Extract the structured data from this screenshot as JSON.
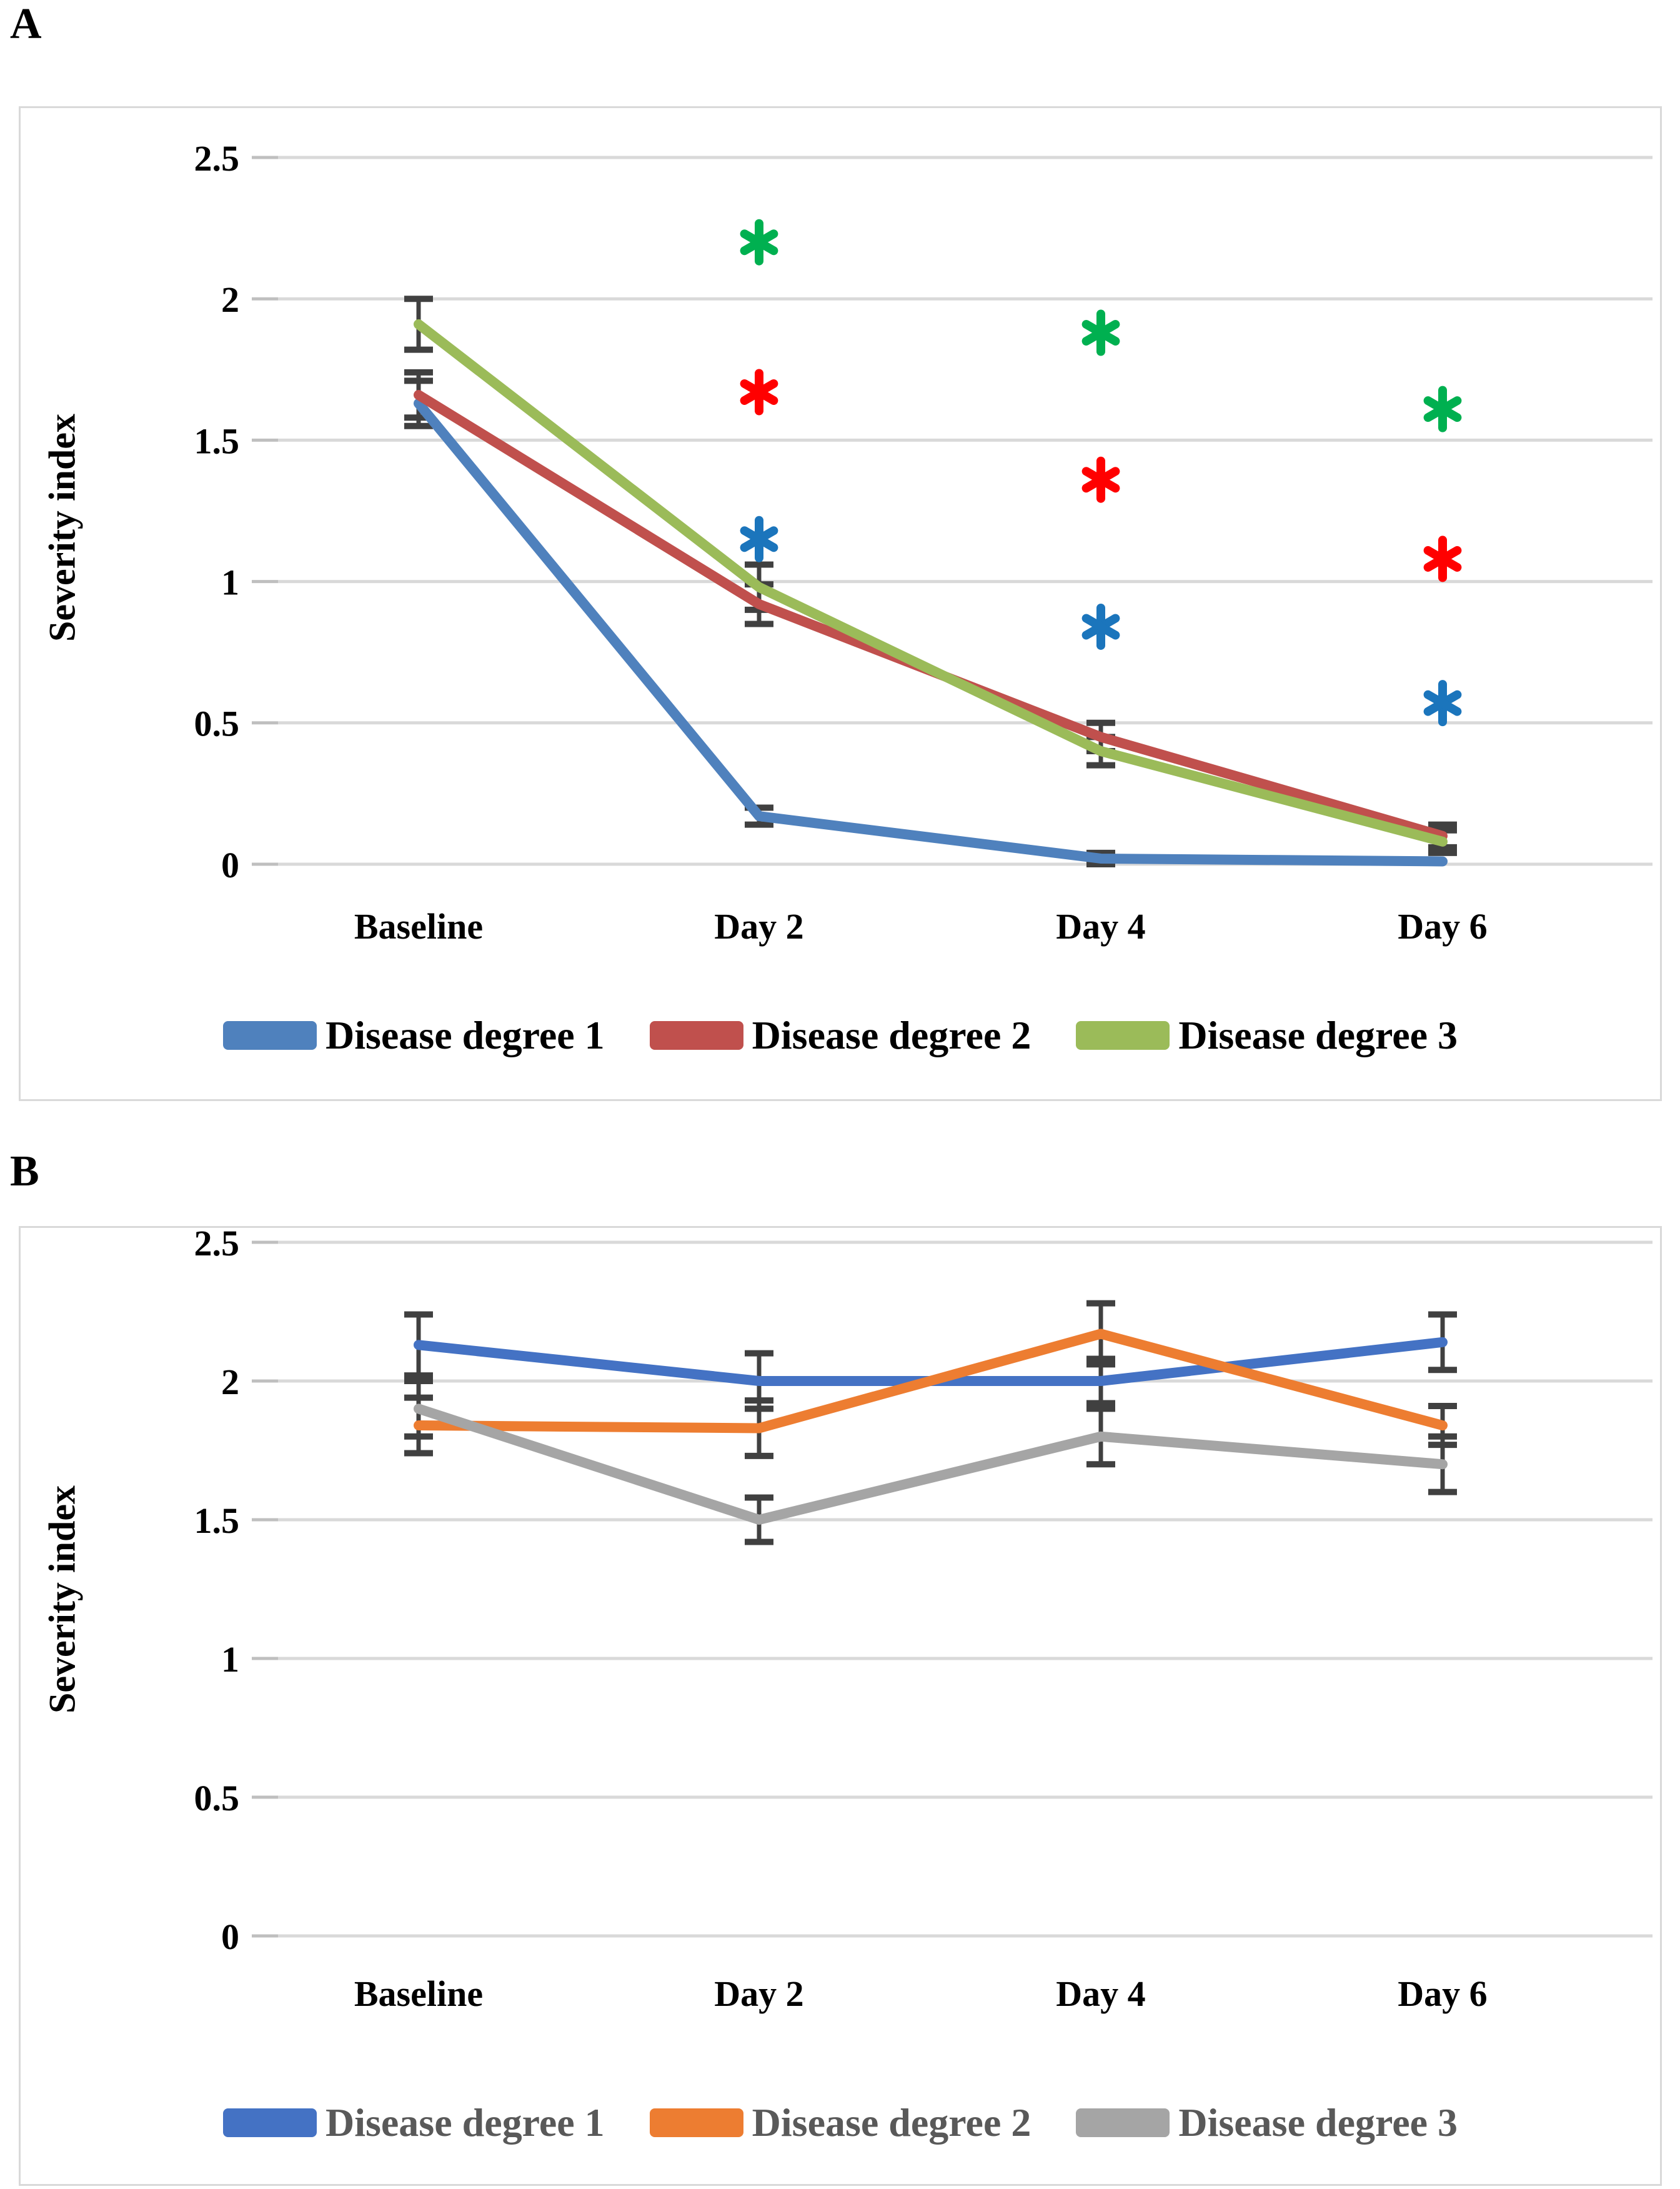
{
  "chart_data": [
    {
      "id": "panel-A",
      "panel_label": "A",
      "type": "line",
      "title": "",
      "xlabel": "",
      "ylabel": "Severity index",
      "categories": [
        "Baseline",
        "Day 2",
        "Day 4",
        "Day 6"
      ],
      "yticks": [
        2.5,
        2,
        1.5,
        1,
        0.5,
        0
      ],
      "ylim": [
        0,
        2.72
      ],
      "grid": true,
      "legend_position": "bottom",
      "axis_text_color": "#000000",
      "legend_text_color": "#000000",
      "error_bar_color": "#404040",
      "series": [
        {
          "name": "Disease degree 1",
          "color": "#4F81BD",
          "values": [
            1.63,
            0.17,
            0.02,
            0.01
          ],
          "errors": [
            0.08,
            0.03,
            0.02,
            0.01
          ]
        },
        {
          "name": "Disease degree 2",
          "color": "#C0504D",
          "values": [
            1.66,
            0.92,
            0.45,
            0.1
          ],
          "errors": [
            0.08,
            0.07,
            0.05,
            0.04
          ]
        },
        {
          "name": "Disease degree 3",
          "color": "#9BBB59",
          "values": [
            1.91,
            0.98,
            0.4,
            0.08
          ],
          "errors": [
            0.09,
            0.08,
            0.05,
            0.04
          ]
        }
      ],
      "significance_markers": [
        {
          "category": "Day 2",
          "value": 2.2,
          "color": "#00B050",
          "symbol": "asterisk"
        },
        {
          "category": "Day 2",
          "value": 1.67,
          "color": "#FF0000",
          "symbol": "asterisk"
        },
        {
          "category": "Day 2",
          "value": 1.15,
          "color": "#1B75BC",
          "symbol": "asterisk"
        },
        {
          "category": "Day 4",
          "value": 1.88,
          "color": "#00B050",
          "symbol": "asterisk"
        },
        {
          "category": "Day 4",
          "value": 1.36,
          "color": "#FF0000",
          "symbol": "asterisk"
        },
        {
          "category": "Day 4",
          "value": 0.84,
          "color": "#1B75BC",
          "symbol": "asterisk"
        },
        {
          "category": "Day 6",
          "value": 1.61,
          "color": "#00B050",
          "symbol": "asterisk"
        },
        {
          "category": "Day 6",
          "value": 1.08,
          "color": "#FF0000",
          "symbol": "asterisk"
        },
        {
          "category": "Day 6",
          "value": 0.57,
          "color": "#1B75BC",
          "symbol": "asterisk"
        }
      ]
    },
    {
      "id": "panel-B",
      "panel_label": "B",
      "type": "line",
      "title": "",
      "xlabel": "",
      "ylabel": "Severity index",
      "categories": [
        "Baseline",
        "Day 2",
        "Day 4",
        "Day 6"
      ],
      "yticks": [
        2.5,
        2,
        1.5,
        1,
        0.5,
        0
      ],
      "ylim": [
        0,
        2.72
      ],
      "grid": true,
      "legend_position": "bottom",
      "axis_text_color": "#000000",
      "legend_text_color": "#595959",
      "error_bar_color": "#404040",
      "series": [
        {
          "name": "Disease degree 1",
          "color": "#4472C4",
          "values": [
            2.13,
            2.0,
            2.0,
            2.14
          ],
          "errors": [
            0.11,
            0.1,
            0.08,
            0.1
          ]
        },
        {
          "name": "Disease degree 2",
          "color": "#ED7D31",
          "values": [
            1.84,
            1.83,
            2.17,
            1.84
          ],
          "errors": [
            0.1,
            0.1,
            0.11,
            0.07
          ]
        },
        {
          "name": "Disease degree 3",
          "color": "#A5A5A5",
          "values": [
            1.9,
            1.5,
            1.8,
            1.7
          ],
          "errors": [
            0.1,
            0.08,
            0.1,
            0.1
          ]
        }
      ],
      "significance_markers": []
    }
  ]
}
